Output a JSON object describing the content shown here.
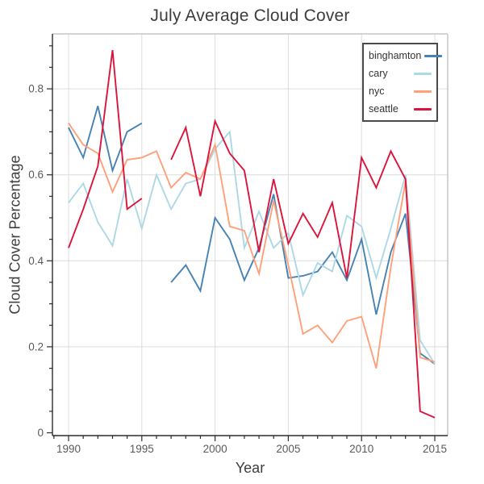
{
  "figure": {
    "title": "July Average Cloud Cover",
    "xlabel": "Year",
    "ylabel": "Cloud Cover Percentage"
  },
  "chart_data": {
    "type": "line",
    "title": "July Average Cloud Cover",
    "xlabel": "Year",
    "ylabel": "Cloud Cover Percentage",
    "x_range": [
      1988.9,
      2015.9
    ],
    "y_range": [
      0,
      0.93
    ],
    "grid": true,
    "legend_position": "top-right",
    "x_ticks_major": [
      1990,
      1995,
      2000,
      2005,
      2010,
      2015
    ],
    "x_tick_labels": [
      "1990",
      "1995",
      "2000",
      "2005",
      "2010",
      "2015"
    ],
    "x_minor_step": 1,
    "y_ticks_major": [
      0,
      0.2,
      0.4,
      0.6,
      0.8
    ],
    "y_tick_labels": [
      "0",
      "0.2",
      "0.4",
      "0.6",
      "0.8"
    ],
    "y_minor_step": 0.05,
    "x": [
      1990,
      1991,
      1992,
      1993,
      1994,
      1995,
      1996,
      1997,
      1998,
      1999,
      2000,
      2001,
      2002,
      2003,
      2004,
      2005,
      2006,
      2007,
      2008,
      2009,
      2010,
      2011,
      2012,
      2013,
      2014,
      2015
    ],
    "series": [
      {
        "name": "binghamton",
        "color": "#4682B4",
        "values": [
          0.71,
          0.64,
          0.76,
          0.61,
          0.7,
          0.72,
          null,
          0.35,
          0.39,
          0.33,
          0.5,
          0.45,
          0.355,
          0.43,
          0.555,
          0.36,
          0.365,
          0.375,
          0.42,
          0.355,
          0.45,
          0.275,
          0.42,
          0.51,
          0.185,
          0.16
        ]
      },
      {
        "name": "cary",
        "color": "#ADD8E6",
        "values": [
          0.535,
          0.58,
          0.49,
          0.435,
          0.59,
          0.475,
          0.6,
          0.52,
          0.58,
          0.59,
          0.66,
          0.7,
          0.43,
          0.515,
          0.43,
          0.465,
          0.32,
          0.395,
          0.375,
          0.505,
          0.48,
          0.36,
          0.475,
          0.6,
          0.215,
          0.16
        ]
      },
      {
        "name": "nyc",
        "color": "#FFA07A",
        "values": [
          0.72,
          0.67,
          0.65,
          0.56,
          0.635,
          0.64,
          0.655,
          0.57,
          0.605,
          0.59,
          0.67,
          0.48,
          0.47,
          0.37,
          0.54,
          0.39,
          0.23,
          0.25,
          0.21,
          0.26,
          0.27,
          0.15,
          0.385,
          0.585,
          0.175,
          0.165
        ]
      },
      {
        "name": "seattle",
        "color": "#DC143C",
        "values": [
          0.43,
          0.52,
          0.62,
          0.89,
          0.52,
          0.545,
          null,
          0.635,
          0.71,
          0.55,
          0.725,
          0.65,
          0.61,
          0.42,
          0.59,
          0.44,
          0.51,
          0.455,
          0.535,
          0.36,
          0.64,
          0.57,
          0.655,
          0.59,
          0.05,
          0.035
        ]
      }
    ]
  },
  "style": {
    "grid_color": "#dcdcdc",
    "frame_color": "#c6c6c6",
    "axis_color": "#2b2b2b",
    "tick_label_color": "#595959",
    "title_color": "#3d3d3d"
  }
}
